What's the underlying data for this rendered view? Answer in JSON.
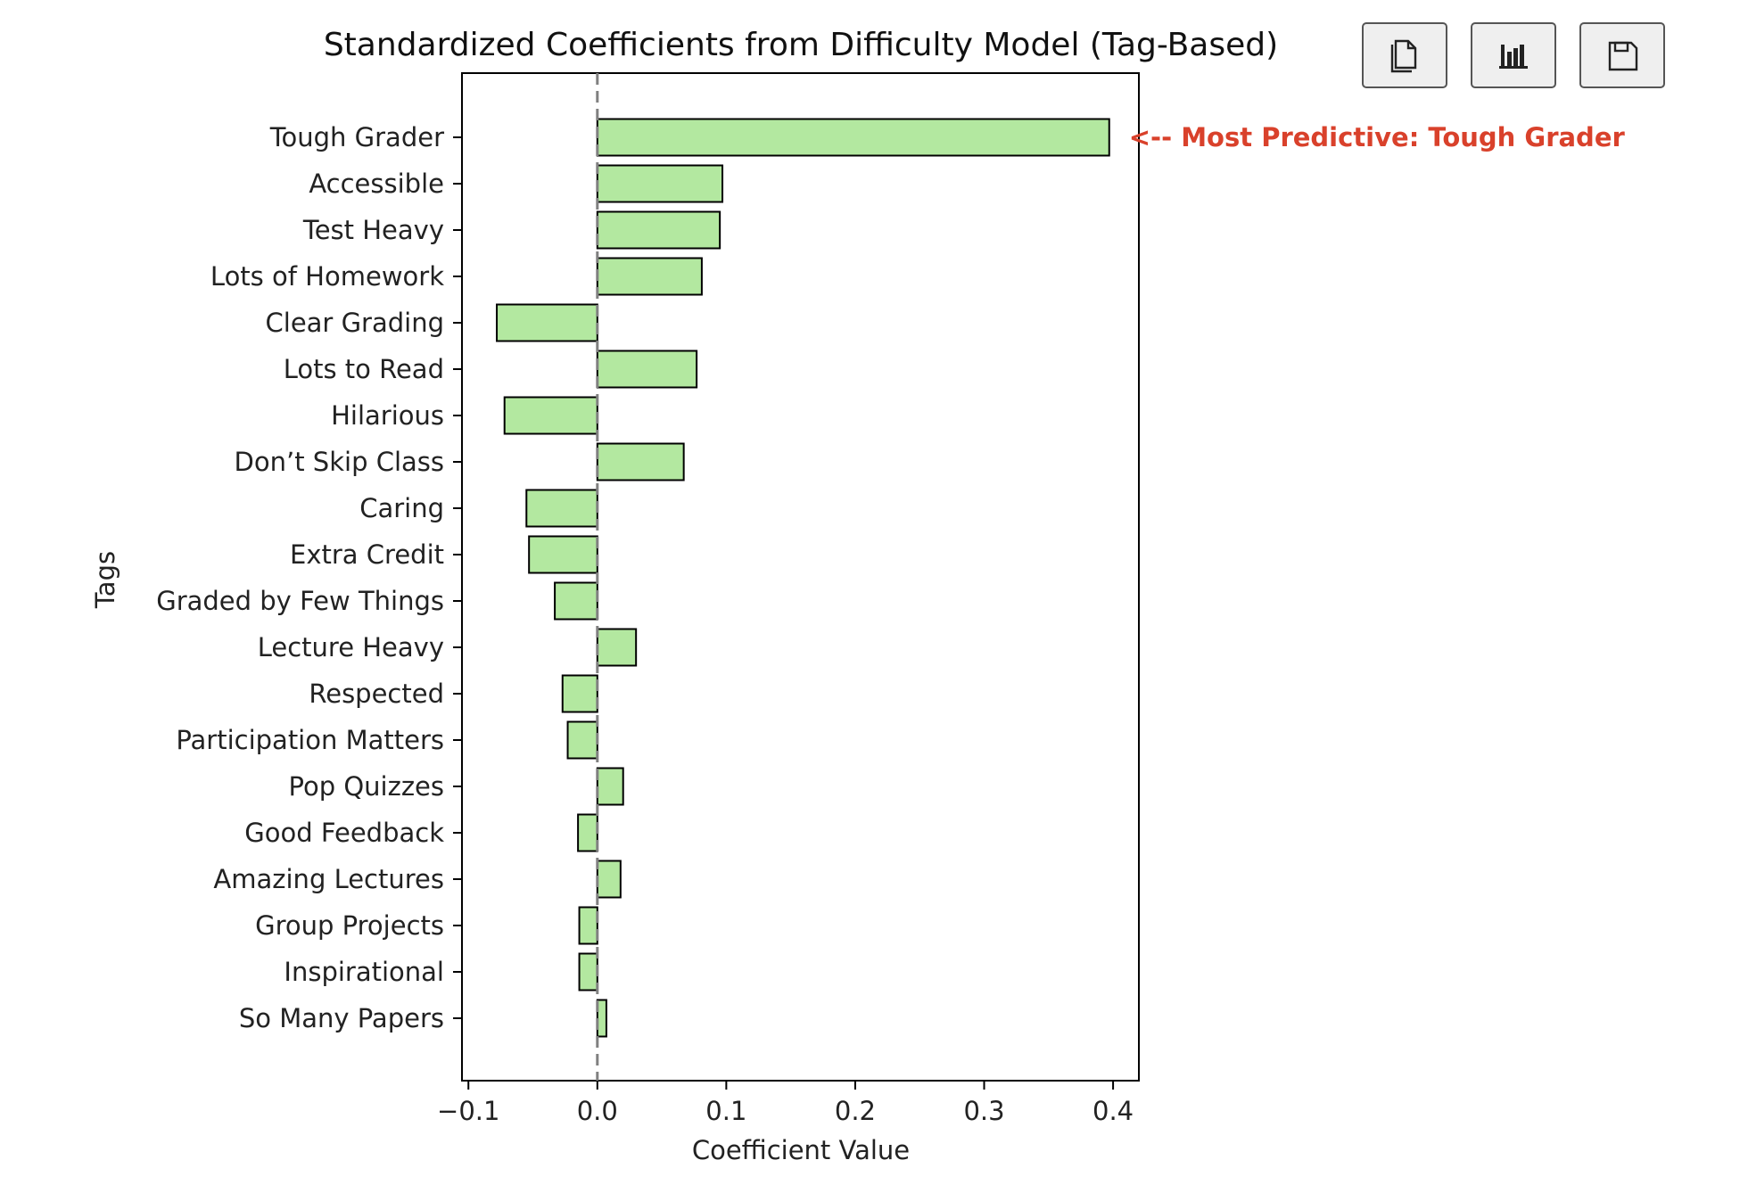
{
  "chart_data": {
    "type": "bar",
    "orientation": "horizontal",
    "title": "Standardized Coefficients from Difficulty Model (Tag-Based)",
    "xlabel": "Coefficient Value",
    "ylabel": "Tags",
    "xlim": [
      -0.105,
      0.42
    ],
    "xticks": [
      -0.1,
      0.0,
      0.1,
      0.2,
      0.3,
      0.4
    ],
    "xtick_labels": [
      "−0.1",
      "0.0",
      "0.1",
      "0.2",
      "0.3",
      "0.4"
    ],
    "categories": [
      "Tough Grader",
      "Accessible",
      "Test Heavy",
      "Lots of Homework",
      "Clear Grading",
      "Lots to Read",
      "Hilarious",
      "Don’t Skip Class",
      "Caring",
      "Extra Credit",
      "Graded by Few Things",
      "Lecture Heavy",
      "Respected",
      "Participation Matters",
      "Pop Quizzes",
      "Good Feedback",
      "Amazing Lectures",
      "Group Projects",
      "Inspirational",
      "So Many Papers"
    ],
    "values": [
      0.397,
      0.097,
      0.095,
      0.081,
      -0.078,
      0.077,
      -0.072,
      0.067,
      -0.055,
      -0.053,
      -0.033,
      0.03,
      -0.027,
      -0.023,
      0.02,
      -0.015,
      0.018,
      -0.014,
      -0.014,
      0.007
    ],
    "bar_color": "#b3e8a0",
    "bar_edge_color": "#000000",
    "reference_line": {
      "x": 0.0,
      "style": "dashed",
      "color": "#808080"
    },
    "annotation": {
      "text": "<-- Most Predictive: Tough Grader",
      "target_category": "Tough Grader",
      "color": "#d9412b"
    },
    "grid": false,
    "legend": "none"
  },
  "toolbar": {
    "buttons": [
      {
        "name": "copy-button",
        "icon": "copy-icon"
      },
      {
        "name": "chart-button",
        "icon": "bar-chart-icon"
      },
      {
        "name": "save-button",
        "icon": "floppy-disk-icon"
      }
    ]
  }
}
